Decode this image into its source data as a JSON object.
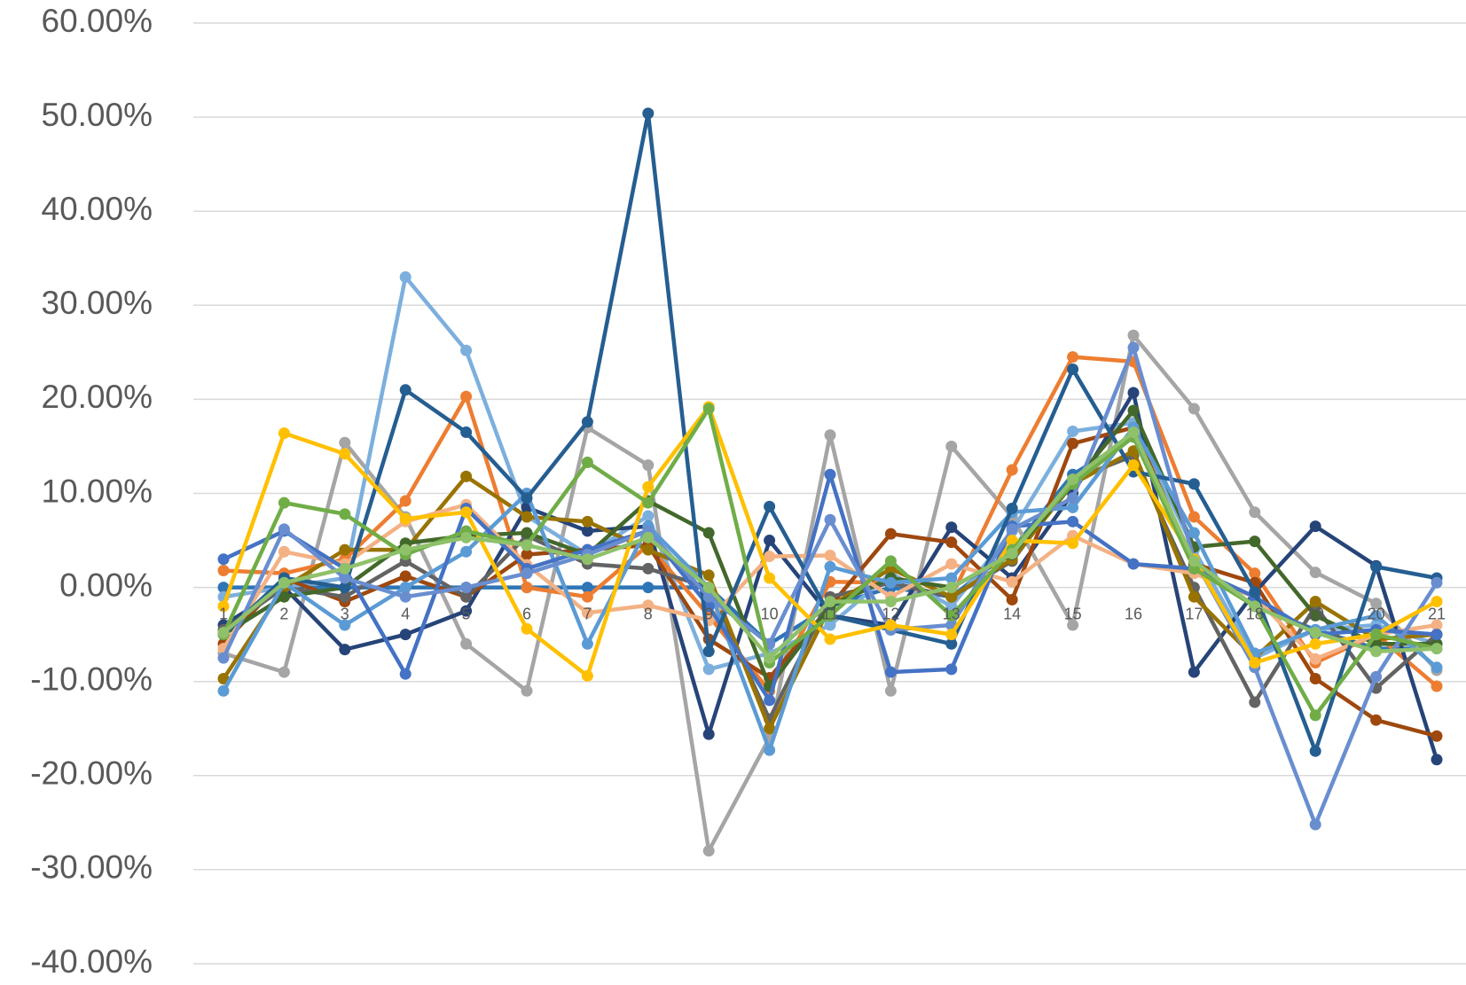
{
  "chart_data": {
    "type": "line",
    "categories": [
      "1",
      "2",
      "3",
      "4",
      "5",
      "6",
      "7",
      "8",
      "9",
      "10",
      "11",
      "12",
      "13",
      "14",
      "15",
      "16",
      "17",
      "18",
      "19",
      "20",
      "21"
    ],
    "ylim": [
      -40,
      60
    ],
    "yticks": [
      {
        "value": -40,
        "label": "-40.00%"
      },
      {
        "value": -30,
        "label": "-30.00%"
      },
      {
        "value": -20,
        "label": "-20.00%"
      },
      {
        "value": -10,
        "label": "-10.00%"
      },
      {
        "value": 0,
        "label": "0.00%"
      },
      {
        "value": 10,
        "label": "10.00%"
      },
      {
        "value": 20,
        "label": "20.00%"
      },
      {
        "value": 30,
        "label": "30.00%"
      },
      {
        "value": 40,
        "label": "40.00%"
      },
      {
        "value": 50,
        "label": "50.00%"
      },
      {
        "value": 60,
        "label": "60.00%"
      }
    ],
    "grid": true,
    "series": [
      {
        "color": "#2E75B6",
        "values": [
          0,
          0,
          0,
          0,
          0,
          0,
          0,
          0,
          0,
          -6,
          -2,
          0,
          -1,
          4,
          12,
          16,
          2.5,
          -2,
          -4.5,
          -6.5,
          -6.5
        ]
      },
      {
        "color": "#A5A5A5",
        "values": [
          -7,
          -9,
          15.4,
          7.5,
          -6,
          -11,
          17,
          13,
          -28,
          -16,
          16.2,
          -11,
          15,
          7.5,
          -4,
          26.8,
          19,
          8,
          1.6,
          -1.7,
          -8.8
        ]
      },
      {
        "color": "#7CAFDD",
        "values": [
          -1,
          0,
          1,
          33,
          25.2,
          7.6,
          3.5,
          7.6,
          -8.7,
          -7,
          -4,
          1.5,
          -2,
          6,
          16.6,
          17.5,
          4,
          -7.5,
          -4.5,
          -4,
          -6
        ]
      },
      {
        "color": "#ED7D31",
        "values": [
          1.8,
          1.5,
          3,
          9.2,
          20.3,
          0,
          -1,
          4.5,
          -3,
          -11,
          0.6,
          0.5,
          -1,
          12.5,
          24.5,
          24,
          7.5,
          1.5,
          -8,
          -5,
          -10.5
        ]
      },
      {
        "color": "#264478",
        "values": [
          -4,
          0,
          -6.6,
          -5,
          -2.5,
          8.5,
          6,
          6.5,
          -15.6,
          5,
          -3,
          -4,
          6.4,
          1,
          10,
          20.7,
          -9,
          -0.5,
          6.5,
          2.3,
          -18.3
        ]
      },
      {
        "color": "#9E480E",
        "values": [
          -6,
          1,
          -1.5,
          1.2,
          -1,
          3.5,
          4,
          4.5,
          -5.5,
          -9.6,
          -2,
          5.7,
          4.8,
          -1.3,
          15.3,
          17,
          2.5,
          0.5,
          -9.7,
          -14.1,
          -15.8
        ]
      },
      {
        "color": "#636363",
        "values": [
          -4.5,
          0,
          -1,
          2.8,
          -1,
          5.5,
          2.5,
          2,
          0,
          -14,
          -1,
          0.5,
          -1,
          2.8,
          11.5,
          14,
          0,
          -12.2,
          -2,
          -10.7,
          -5
        ]
      },
      {
        "color": "#997300",
        "values": [
          -9.7,
          0,
          4,
          4,
          11.8,
          7.5,
          7,
          4,
          1.3,
          -15,
          -2,
          2,
          -1,
          3,
          11,
          14.5,
          -1,
          -7.5,
          -1.5,
          -5.5,
          -5
        ]
      },
      {
        "color": "#43682B",
        "values": [
          -5,
          -1,
          0,
          4.7,
          5.5,
          5.8,
          3.5,
          9.2,
          5.8,
          -10.5,
          -2,
          1,
          0,
          3.5,
          11,
          18.8,
          4.3,
          4.9,
          -3,
          -6,
          -6
        ]
      },
      {
        "color": "#F4B183",
        "values": [
          -6.5,
          3.8,
          2.5,
          7,
          8.8,
          2.4,
          -2.7,
          -1.9,
          -3.5,
          3.3,
          3.4,
          -1,
          2.5,
          0.6,
          5.5,
          2.5,
          1.5,
          -1,
          -7.6,
          -5,
          -4
        ]
      },
      {
        "color": "#5B9BD5",
        "values": [
          -11,
          0.5,
          -4,
          0,
          3.8,
          10,
          -6,
          6.5,
          0,
          -17.3,
          2.2,
          0.5,
          1,
          8,
          8.5,
          17,
          5.8,
          -7,
          -4.5,
          -3,
          -8.5
        ]
      },
      {
        "color": "#4472C4",
        "values": [
          3,
          6,
          2,
          -9.2,
          8.4,
          2,
          4,
          6,
          -2,
          -12,
          12,
          -9,
          -8.7,
          6.5,
          7,
          2.5,
          2,
          -1,
          -5,
          -4.5,
          -5
        ]
      },
      {
        "color": "#255E91",
        "values": [
          -5,
          1,
          0,
          21,
          16.5,
          9.5,
          17.6,
          50.4,
          -6.8,
          8.6,
          -3,
          -4.5,
          -6,
          8.4,
          23.2,
          12.3,
          11,
          -0.5,
          -17.4,
          2.2,
          1
        ]
      },
      {
        "color": "#698ED0",
        "values": [
          -7.5,
          6.2,
          1,
          -1,
          0,
          1.5,
          3.5,
          6,
          -1,
          -6,
          7.2,
          -4.5,
          -4,
          6.2,
          9.5,
          25.5,
          3,
          -8.5,
          -25.2,
          -9.5,
          0.5
        ]
      },
      {
        "color": "#FFC000",
        "values": [
          -2,
          16.4,
          14.2,
          7.3,
          8,
          -4.4,
          -9.4,
          10.7,
          19.2,
          1,
          -5.5,
          -4,
          -5,
          5,
          4.7,
          13,
          3,
          -8,
          -6,
          -5,
          -1.5
        ]
      },
      {
        "color": "#70AD47",
        "values": [
          -5,
          9,
          7.8,
          3.5,
          6,
          4.5,
          13.3,
          9,
          19,
          -8,
          -3,
          2.8,
          -3,
          4,
          11,
          16,
          2,
          -2,
          -13.6,
          -5,
          -6.5
        ]
      },
      {
        "color": "#8FC16B",
        "values": [
          -4.8,
          0.5,
          2,
          4,
          5.3,
          4.5,
          3,
          5.3,
          0,
          -7.5,
          -1.5,
          -1.5,
          0,
          3.6,
          11.5,
          16.5,
          2.8,
          -2,
          -4.8,
          -6.8,
          -6.5
        ]
      }
    ]
  }
}
